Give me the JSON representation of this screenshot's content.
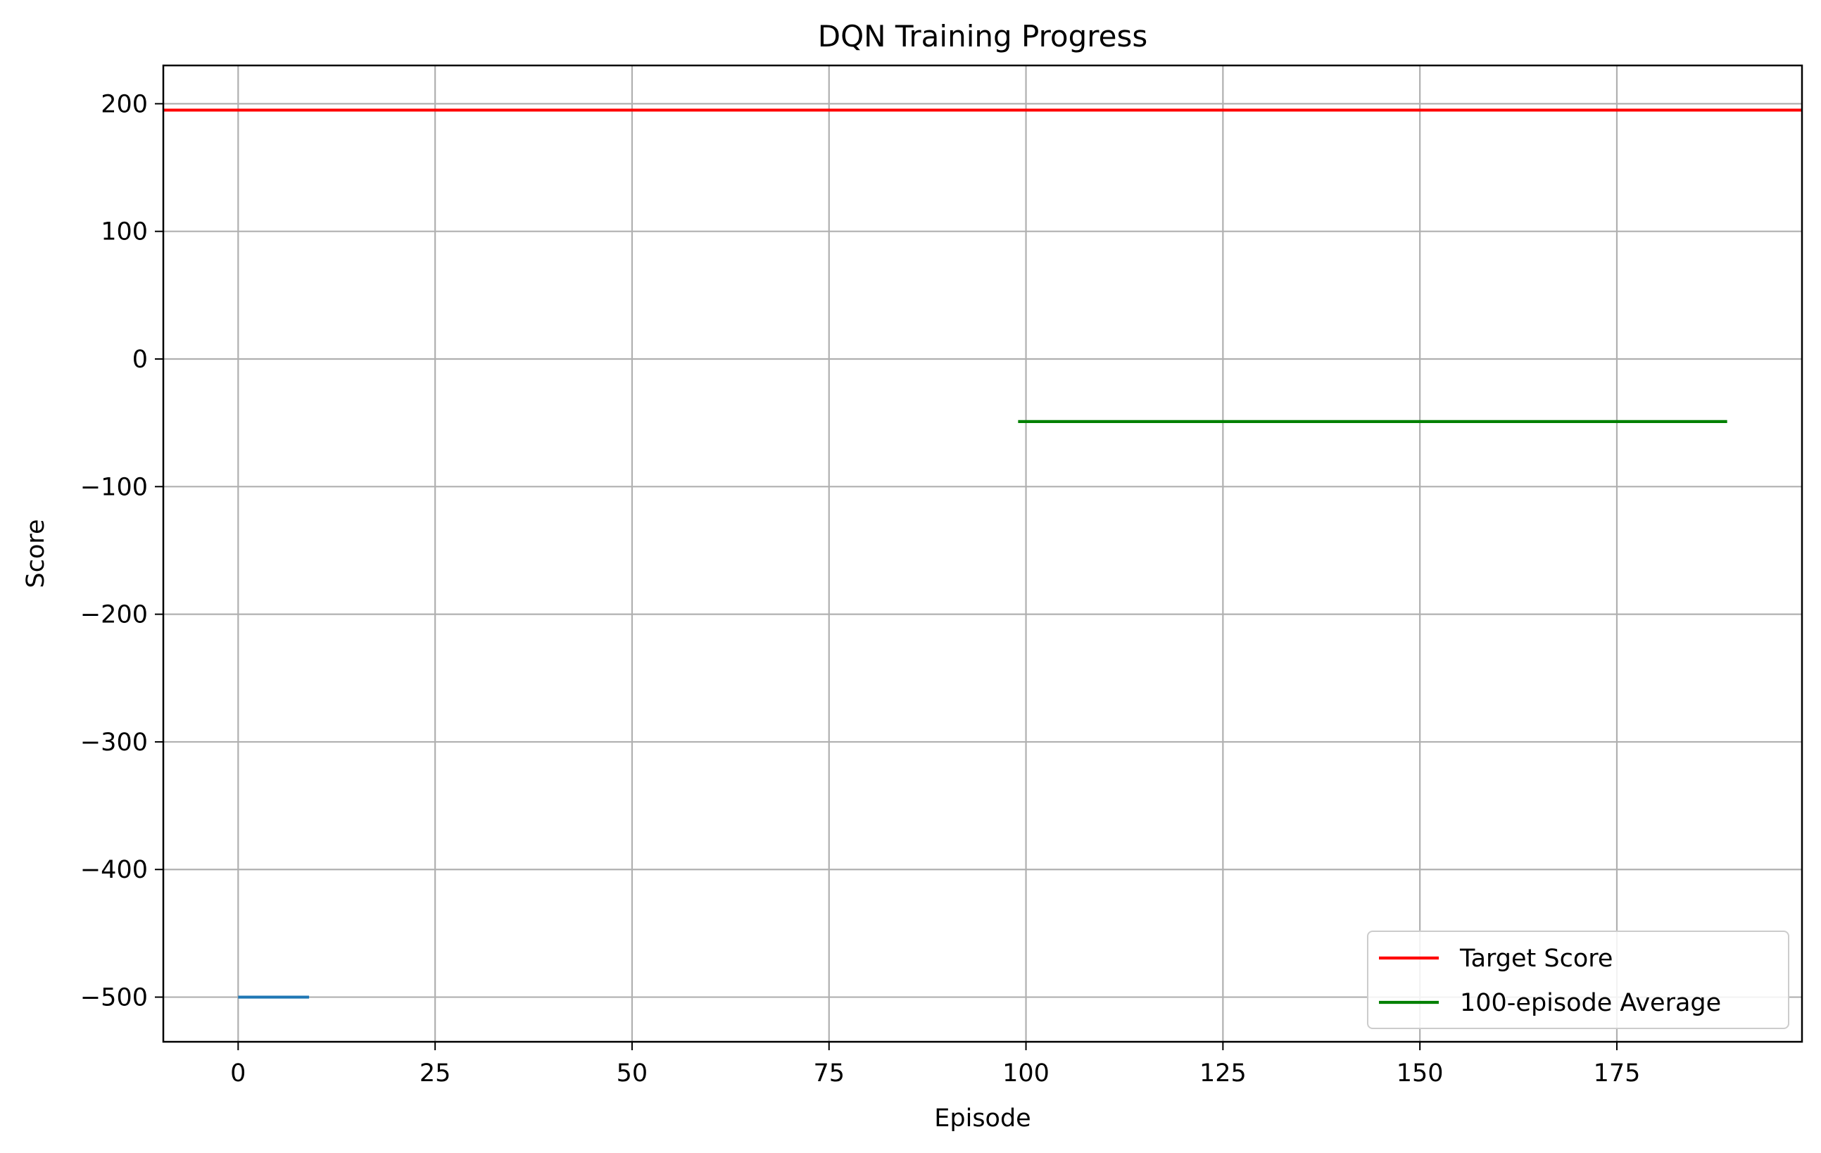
{
  "chart_data": {
    "type": "line",
    "title": "DQN Training Progress",
    "xlabel": "Episode",
    "ylabel": "Score",
    "xlim": [
      -9.5,
      198.5
    ],
    "ylim": [
      -535,
      230
    ],
    "xticks": [
      0,
      25,
      50,
      75,
      100,
      125,
      150,
      175
    ],
    "yticks": [
      -500,
      -400,
      -300,
      -200,
      -100,
      0,
      100,
      200
    ],
    "xtick_labels": [
      "0",
      "25",
      "50",
      "75",
      "100",
      "125",
      "150",
      "175"
    ],
    "ytick_labels": [
      "−500",
      "−400",
      "−300",
      "−200",
      "−100",
      "0",
      "100",
      "200"
    ],
    "grid": true,
    "legend_position": "lower-right",
    "series": [
      {
        "color": "#1f77b4",
        "x": [
          0,
          9
        ],
        "y": [
          -500,
          -500
        ]
      },
      {
        "name": "Target Score",
        "color": "#ff0000",
        "kind": "hline",
        "y": 195
      },
      {
        "name": "100-episode Average",
        "color": "#008000",
        "x": [
          99,
          189
        ],
        "y": [
          -49,
          -49
        ]
      }
    ]
  }
}
